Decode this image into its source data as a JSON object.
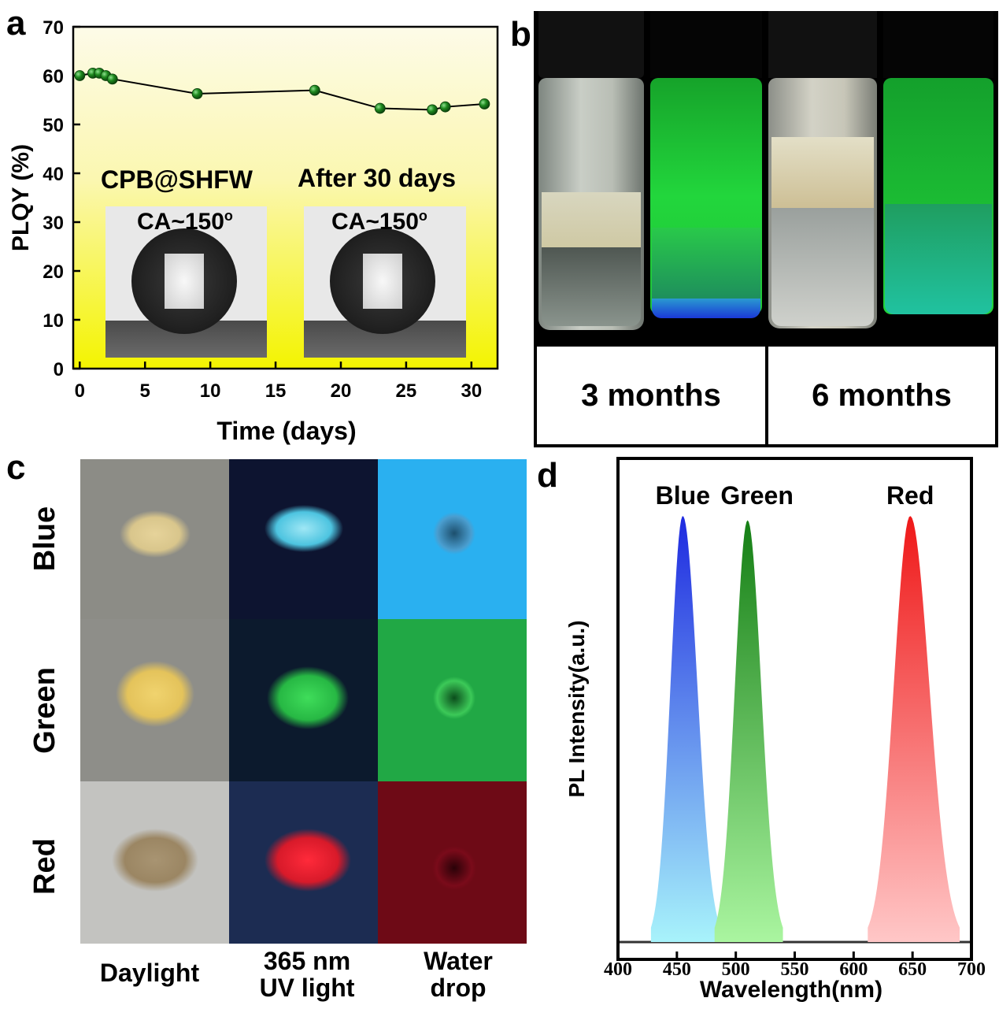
{
  "panels": {
    "a": "a",
    "b": "b",
    "c": "c",
    "d": "d"
  },
  "panel_a": {
    "inset_left_title": "CPB@SHFW",
    "inset_right_title": "After 30 days",
    "inset_left_angle": "CA~150",
    "inset_right_angle": "CA~150",
    "degree_mark": "o"
  },
  "panel_b": {
    "box_labels": [
      "3 months",
      "6 months"
    ]
  },
  "panel_c": {
    "row_labels": [
      "Blue",
      "Green",
      "Red"
    ],
    "col_labels": [
      "Daylight",
      "365 nm UV light",
      "Water drop"
    ],
    "col_label_lines": [
      [
        "Daylight"
      ],
      [
        "365 nm",
        "UV light"
      ],
      [
        "Water",
        "drop"
      ]
    ]
  },
  "colors": {
    "plqy_marker": "#1f7a1f",
    "blue_peak": "#2233dd",
    "green_peak": "#1a8f1a",
    "red_peak": "#ee2222",
    "yellow_fill": "#f5f700"
  },
  "chart_data": [
    {
      "id": "panel-a",
      "type": "line",
      "title": "",
      "xlabel": "Time (days)",
      "ylabel": "PLQY (%)",
      "xlim": [
        -0.5,
        32
      ],
      "ylim": [
        0,
        70
      ],
      "xticks": [
        0,
        5,
        10,
        15,
        20,
        25,
        30
      ],
      "yticks": [
        0,
        10,
        20,
        30,
        40,
        50,
        60,
        70
      ],
      "series": [
        {
          "name": "PLQY",
          "x": [
            0,
            1,
            1.5,
            2,
            2.5,
            9,
            18,
            23,
            27,
            28,
            31
          ],
          "y": [
            60,
            60.5,
            60.5,
            60,
            59.3,
            56.3,
            57,
            53.3,
            53,
            53.6,
            54.2
          ]
        }
      ]
    },
    {
      "id": "panel-d",
      "type": "area",
      "title": "",
      "xlabel": "Wavelength(nm)",
      "ylabel": "PL Intensity(a.u.)",
      "xlim": [
        400,
        700
      ],
      "ylim": [
        0,
        1
      ],
      "xticks": [
        400,
        450,
        500,
        550,
        600,
        650,
        700
      ],
      "series": [
        {
          "name": "Blue",
          "peak": 455,
          "start": 428,
          "end": 487,
          "height": 0.98
        },
        {
          "name": "Green",
          "peak": 510,
          "start": 482,
          "end": 540,
          "height": 0.97
        },
        {
          "name": "Red",
          "peak": 648,
          "start": 612,
          "end": 690,
          "height": 0.98
        }
      ]
    }
  ]
}
